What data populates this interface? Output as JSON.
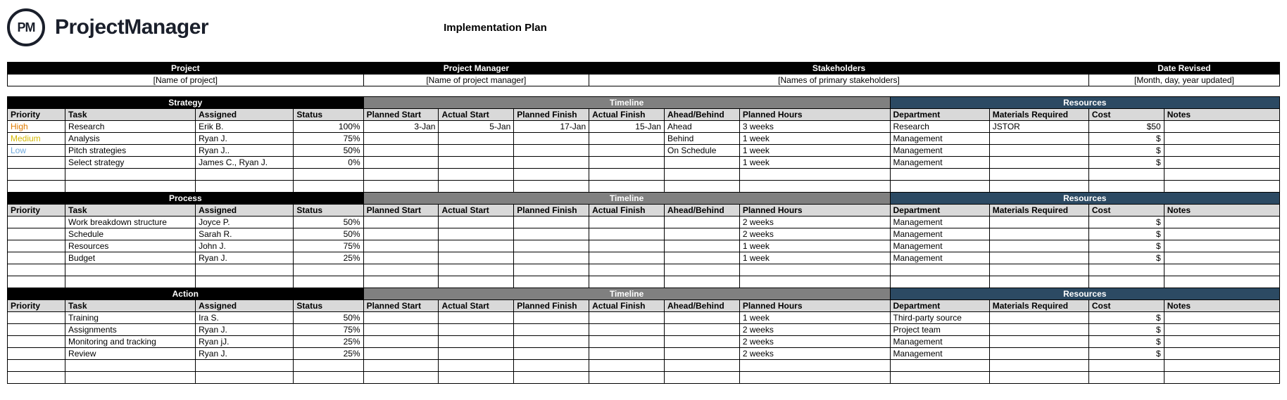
{
  "brand": {
    "initials": "PM",
    "name": "ProjectManager"
  },
  "doc_title": "Implementation Plan",
  "colors": {
    "black": "#000000",
    "gray_band": "#808080",
    "navy_band": "#2c4a63",
    "col_head": "#d9d9d9",
    "priority_high": "#e07b00",
    "priority_medium": "#d4b800",
    "priority_low": "#6fa8dc"
  },
  "meta": {
    "headers": [
      "Project",
      "Project Manager",
      "Stakeholders",
      "Date Revised"
    ],
    "values": [
      "[Name of project]",
      "[Name of project manager]",
      "[Names of primary stakeholders]",
      "[Month, day, year updated]"
    ]
  },
  "section_bands": {
    "strategy": "Strategy",
    "process": "Process",
    "action": "Action",
    "timeline": "Timeline",
    "resources": "Resources"
  },
  "columns": {
    "priority": "Priority",
    "task": "Task",
    "assigned": "Assigned",
    "status": "Status",
    "planned_start": "Planned Start",
    "actual_start": "Actual Start",
    "planned_finish": "Planned Finish",
    "actual_finish": "Actual Finish",
    "ahead_behind": "Ahead/Behind",
    "planned_hours": "Planned Hours",
    "department": "Department",
    "materials": "Materials Required",
    "cost": "Cost",
    "notes": "Notes"
  },
  "priority_labels": {
    "high": "High",
    "medium": "Medium",
    "low": "Low"
  },
  "sections": [
    {
      "name": "strategy",
      "rows": [
        {
          "priority": "high",
          "task": "Research",
          "assigned": "Erik B.",
          "status": "100%",
          "planned_start": "3-Jan",
          "actual_start": "5-Jan",
          "planned_finish": "17-Jan",
          "actual_finish": "15-Jan",
          "ahead_behind": "Ahead",
          "planned_hours": "3 weeks",
          "department": "Research",
          "materials": "JSTOR",
          "cost": "$50",
          "notes": ""
        },
        {
          "priority": "medium",
          "task": "Analysis",
          "assigned": "Ryan J.",
          "status": "75%",
          "planned_start": "",
          "actual_start": "",
          "planned_finish": "",
          "actual_finish": "",
          "ahead_behind": "Behind",
          "planned_hours": "1 week",
          "department": "Management",
          "materials": "",
          "cost": "$",
          "notes": ""
        },
        {
          "priority": "low",
          "task": "Pitch strategies",
          "assigned": "Ryan J..",
          "status": "50%",
          "planned_start": "",
          "actual_start": "",
          "planned_finish": "",
          "actual_finish": "",
          "ahead_behind": "On Schedule",
          "planned_hours": "1 week",
          "department": "Management",
          "materials": "",
          "cost": "$",
          "notes": ""
        },
        {
          "priority": "",
          "task": "Select strategy",
          "assigned": "James C., Ryan J.",
          "status": "0%",
          "planned_start": "",
          "actual_start": "",
          "planned_finish": "",
          "actual_finish": "",
          "ahead_behind": "",
          "planned_hours": "1 week",
          "department": "Management",
          "materials": "",
          "cost": "$",
          "notes": ""
        }
      ]
    },
    {
      "name": "process",
      "rows": [
        {
          "priority": "",
          "task": "Work breakdown structure",
          "assigned": "Joyce P.",
          "status": "50%",
          "planned_start": "",
          "actual_start": "",
          "planned_finish": "",
          "actual_finish": "",
          "ahead_behind": "",
          "planned_hours": "2 weeks",
          "department": "Management",
          "materials": "",
          "cost": "$",
          "notes": ""
        },
        {
          "priority": "",
          "task": "Schedule",
          "assigned": "Sarah R.",
          "status": "50%",
          "planned_start": "",
          "actual_start": "",
          "planned_finish": "",
          "actual_finish": "",
          "ahead_behind": "",
          "planned_hours": "2 weeks",
          "department": "Management",
          "materials": "",
          "cost": "$",
          "notes": ""
        },
        {
          "priority": "",
          "task": "Resources",
          "assigned": "John J.",
          "status": "75%",
          "planned_start": "",
          "actual_start": "",
          "planned_finish": "",
          "actual_finish": "",
          "ahead_behind": "",
          "planned_hours": "1 week",
          "department": "Management",
          "materials": "",
          "cost": "$",
          "notes": ""
        },
        {
          "priority": "",
          "task": "Budget",
          "assigned": "Ryan J.",
          "status": "25%",
          "planned_start": "",
          "actual_start": "",
          "planned_finish": "",
          "actual_finish": "",
          "ahead_behind": "",
          "planned_hours": "1 week",
          "department": "Management",
          "materials": "",
          "cost": "$",
          "notes": ""
        }
      ]
    },
    {
      "name": "action",
      "rows": [
        {
          "priority": "",
          "task": "Training",
          "assigned": "Ira S.",
          "status": "50%",
          "planned_start": "",
          "actual_start": "",
          "planned_finish": "",
          "actual_finish": "",
          "ahead_behind": "",
          "planned_hours": "1 week",
          "department": "Third-party source",
          "materials": "",
          "cost": "$",
          "notes": ""
        },
        {
          "priority": "",
          "task": "Assignments",
          "assigned": "Ryan J.",
          "status": "75%",
          "planned_start": "",
          "actual_start": "",
          "planned_finish": "",
          "actual_finish": "",
          "ahead_behind": "",
          "planned_hours": "2 weeks",
          "department": "Project team",
          "materials": "",
          "cost": "$",
          "notes": ""
        },
        {
          "priority": "",
          "task": "Monitoring and tracking",
          "assigned": "Ryan jJ.",
          "status": "25%",
          "planned_start": "",
          "actual_start": "",
          "planned_finish": "",
          "actual_finish": "",
          "ahead_behind": "",
          "planned_hours": "2 weeks",
          "department": "Management",
          "materials": "",
          "cost": "$",
          "notes": ""
        },
        {
          "priority": "",
          "task": "Review",
          "assigned": "Ryan J.",
          "status": "25%",
          "planned_start": "",
          "actual_start": "",
          "planned_finish": "",
          "actual_finish": "",
          "ahead_behind": "",
          "planned_hours": "2 weeks",
          "department": "Management",
          "materials": "",
          "cost": "$",
          "notes": ""
        }
      ]
    }
  ],
  "layout": {
    "col_widths_pct": [
      4.3,
      9.7,
      7.3,
      5.2,
      5.6,
      5.6,
      5.6,
      5.6,
      5.6,
      5.6,
      5.6,
      7.4,
      7.4,
      5.6,
      8.6
    ]
  }
}
